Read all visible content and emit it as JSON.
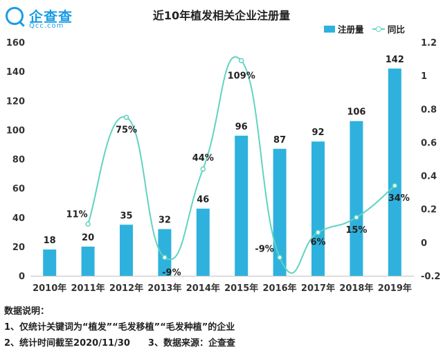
{
  "logo": {
    "name": "企查查",
    "domain": "Qcc.com"
  },
  "colors": {
    "bar": "#2eb2dd",
    "line": "#5fd3c0",
    "brand": "#1a9be6"
  },
  "notes": {
    "heading": "数据说明：",
    "line1": "1、仅统计关键词为“植发”“毛发移植”“毛发种植”的企业",
    "line2": "2、统计时间截至2020/11/30",
    "line3": "3、数据来源：企查查"
  },
  "chart_data": {
    "type": "bar",
    "title": "近10年植发相关企业注册量",
    "categories": [
      "2010年",
      "2011年",
      "2012年",
      "2013年",
      "2014年",
      "2015年",
      "2016年",
      "2017年",
      "2018年",
      "2019年"
    ],
    "series": [
      {
        "name": "注册量",
        "type": "bar",
        "axis": "left",
        "values": [
          18,
          20,
          35,
          32,
          46,
          96,
          87,
          92,
          106,
          142
        ],
        "labels": [
          "18",
          "20",
          "35",
          "32",
          "46",
          "96",
          "87",
          "92",
          "106",
          "142"
        ]
      },
      {
        "name": "同比",
        "type": "line",
        "smooth": true,
        "axis": "right",
        "values": [
          null,
          0.11,
          0.75,
          -0.09,
          0.44,
          1.09,
          -0.09,
          0.06,
          0.15,
          0.34
        ],
        "labels": [
          "",
          "11%",
          "75%",
          "-9%",
          "44%",
          "109%",
          "-9%",
          "6%",
          "15%",
          "34%"
        ]
      }
    ],
    "ylim_left": [
      0,
      160
    ],
    "yticks_left": [
      "0",
      "20",
      "40",
      "60",
      "80",
      "100",
      "120",
      "140",
      "160"
    ],
    "ylim_right": [
      -0.2,
      1.2
    ],
    "yticks_right": [
      "-0.2",
      "0",
      "0.2",
      "0.4",
      "0.6",
      "0.8",
      "1",
      "1.2"
    ],
    "legend_position": "top-right",
    "grid": false
  }
}
